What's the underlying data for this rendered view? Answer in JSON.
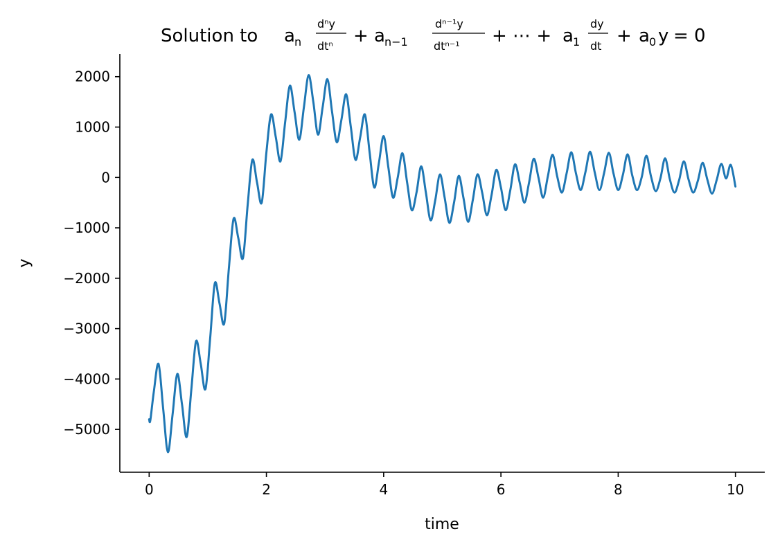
{
  "chart_data": {
    "type": "line",
    "title": "Solution to a_n d^n y/dt^n + a_{n-1} d^{n-1}y/dt^{n-1} + ⋯ + a_1 dy/dt + a_0 y = 0",
    "xlabel": "time",
    "ylabel": "y",
    "xlim": [
      -0.5,
      10.5
    ],
    "ylim": [
      -5850,
      2450
    ],
    "xticks": [
      0,
      2,
      4,
      6,
      8,
      10
    ],
    "xtick_labels": [
      "0",
      "2",
      "4",
      "6",
      "8",
      "10"
    ],
    "yticks": [
      -5000,
      -4000,
      -3000,
      -2000,
      -1000,
      0,
      1000,
      2000
    ],
    "ytick_labels": [
      "−5000",
      "−4000",
      "−3000",
      "−2000",
      "−1000",
      "0",
      "1000",
      "2000"
    ],
    "grid": false,
    "spines": "left-bottom",
    "color": "#1f77b4",
    "series": [
      {
        "x": [
          0,
          0.02,
          0.08,
          0.16,
          0.24,
          0.32,
          0.4,
          0.48,
          0.56,
          0.64,
          0.72,
          0.8,
          0.88,
          0.96,
          1.04,
          1.12,
          1.2,
          1.28,
          1.36,
          1.44,
          1.52,
          1.6,
          1.68,
          1.76,
          1.84,
          1.92,
          2.0,
          2.08,
          2.16,
          2.24,
          2.32,
          2.4,
          2.48,
          2.56,
          2.64,
          2.72,
          2.8,
          2.88,
          2.96,
          3.04,
          3.12,
          3.2,
          3.28,
          3.36,
          3.44,
          3.52,
          3.6,
          3.68,
          3.76,
          3.84,
          3.92,
          4.0,
          4.08,
          4.16,
          4.24,
          4.32,
          4.4,
          4.48,
          4.56,
          4.64,
          4.72,
          4.8,
          4.88,
          4.96,
          5.04,
          5.12,
          5.2,
          5.28,
          5.36,
          5.44,
          5.52,
          5.6,
          5.68,
          5.76,
          5.84,
          5.92,
          6.0,
          6.08,
          6.16,
          6.24,
          6.32,
          6.4,
          6.48,
          6.56,
          6.64,
          6.72,
          6.8,
          6.88,
          6.96,
          7.04,
          7.12,
          7.2,
          7.28,
          7.36,
          7.44,
          7.52,
          7.6,
          7.68,
          7.76,
          7.84,
          7.92,
          8.0,
          8.08,
          8.16,
          8.24,
          8.32,
          8.4,
          8.48,
          8.56,
          8.64,
          8.72,
          8.8,
          8.88,
          8.96,
          9.04,
          9.12,
          9.2,
          9.28,
          9.36,
          9.44,
          9.52,
          9.6,
          9.68,
          9.76,
          9.84,
          9.92,
          10.0
        ],
        "y": [
          -4800,
          -4820,
          -4250,
          -3700,
          -4600,
          -5450,
          -4700,
          -3900,
          -4500,
          -5150,
          -4200,
          -3250,
          -3700,
          -4200,
          -3200,
          -2100,
          -2500,
          -2900,
          -1800,
          -820,
          -1200,
          -1600,
          -550,
          350,
          -100,
          -500,
          500,
          1250,
          800,
          320,
          1100,
          1820,
          1300,
          750,
          1400,
          2030,
          1500,
          850,
          1400,
          1950,
          1300,
          700,
          1150,
          1650,
          1000,
          350,
          800,
          1250,
          500,
          -200,
          300,
          820,
          200,
          -400,
          0,
          480,
          -100,
          -650,
          -300,
          220,
          -300,
          -850,
          -450,
          60,
          -400,
          -900,
          -500,
          30,
          -400,
          -880,
          -450,
          60,
          -300,
          -750,
          -350,
          150,
          -200,
          -650,
          -250,
          260,
          -100,
          -500,
          -100,
          370,
          0,
          -400,
          20,
          450,
          20,
          -300,
          80,
          500,
          80,
          -250,
          100,
          510,
          100,
          -250,
          90,
          490,
          80,
          -250,
          50,
          460,
          40,
          -250,
          0,
          430,
          20,
          -270,
          -20,
          380,
          -30,
          -300,
          -50,
          320,
          -40,
          -300,
          -60,
          290,
          -40,
          -320,
          -50,
          270,
          -20,
          250,
          -180
        ]
      }
    ]
  }
}
